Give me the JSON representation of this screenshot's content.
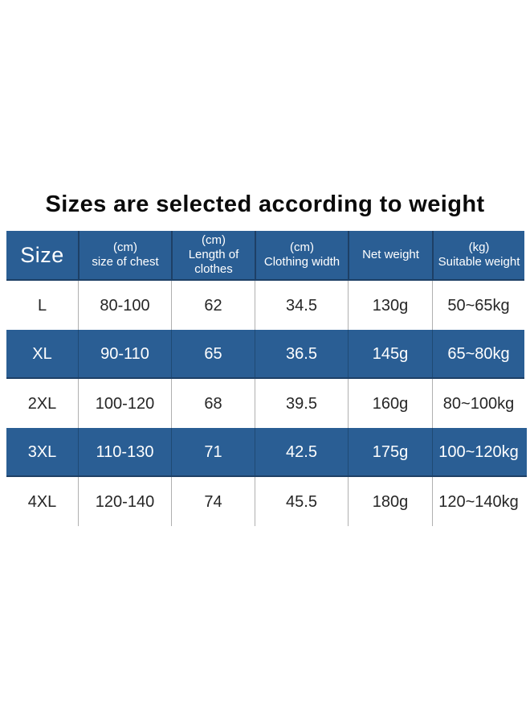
{
  "title": "Sizes are selected according to weight",
  "table": {
    "columns": [
      {
        "id": "size",
        "lines": [
          "Size"
        ]
      },
      {
        "id": "chest",
        "lines": [
          "(cm)",
          "size of chest"
        ]
      },
      {
        "id": "length",
        "lines": [
          "(cm)",
          "Length of",
          "clothes"
        ]
      },
      {
        "id": "width",
        "lines": [
          "(cm)",
          "Clothing width"
        ]
      },
      {
        "id": "net",
        "lines": [
          "Net weight"
        ]
      },
      {
        "id": "suitable",
        "lines": [
          "(kg)",
          "Suitable weight"
        ]
      }
    ],
    "rows": [
      {
        "size": "L",
        "chest": "80-100",
        "length": "62",
        "width": "34.5",
        "net": "130g",
        "suitable": "50~65kg",
        "highlighted": false
      },
      {
        "size": "XL",
        "chest": "90-110",
        "length": "65",
        "width": "36.5",
        "net": "145g",
        "suitable": "65~80kg",
        "highlighted": true
      },
      {
        "size": "2XL",
        "chest": "100-120",
        "length": "68",
        "width": "39.5",
        "net": "160g",
        "suitable": "80~100kg",
        "highlighted": false
      },
      {
        "size": "3XL",
        "chest": "110-130",
        "length": "71",
        "width": "42.5",
        "net": "175g",
        "suitable": "100~120kg",
        "highlighted": true
      },
      {
        "size": "4XL",
        "chest": "120-140",
        "length": "74",
        "width": "45.5",
        "net": "180g",
        "suitable": "120~140kg",
        "highlighted": false
      }
    ]
  },
  "chart_data": {
    "type": "table",
    "title": "Sizes are selected according to weight",
    "columns": [
      "Size",
      "(cm) size of chest",
      "(cm) Length of clothes",
      "(cm) Clothing width",
      "Net weight",
      "(kg) Suitable weight"
    ],
    "rows": [
      [
        "L",
        "80-100",
        "62",
        "34.5",
        "130g",
        "50~65kg"
      ],
      [
        "XL",
        "90-110",
        "65",
        "36.5",
        "145g",
        "65~80kg"
      ],
      [
        "2XL",
        "100-120",
        "68",
        "39.5",
        "160g",
        "80~100kg"
      ],
      [
        "3XL",
        "110-130",
        "71",
        "42.5",
        "175g",
        "100~120kg"
      ],
      [
        "4XL",
        "120-140",
        "74",
        "45.5",
        "180g",
        "120~140kg"
      ]
    ],
    "highlighted_rows": [
      "XL",
      "3XL"
    ]
  },
  "colors": {
    "header_bg": "#2a5e94",
    "highlight_row_bg": "#2a5e94",
    "dark_divider": "#1e4066",
    "light_divider": "#b0b0b0",
    "header_text": "#ffffff",
    "body_text": "#262626",
    "title_text": "#0b0b0b",
    "page_bg": "#ffffff"
  }
}
